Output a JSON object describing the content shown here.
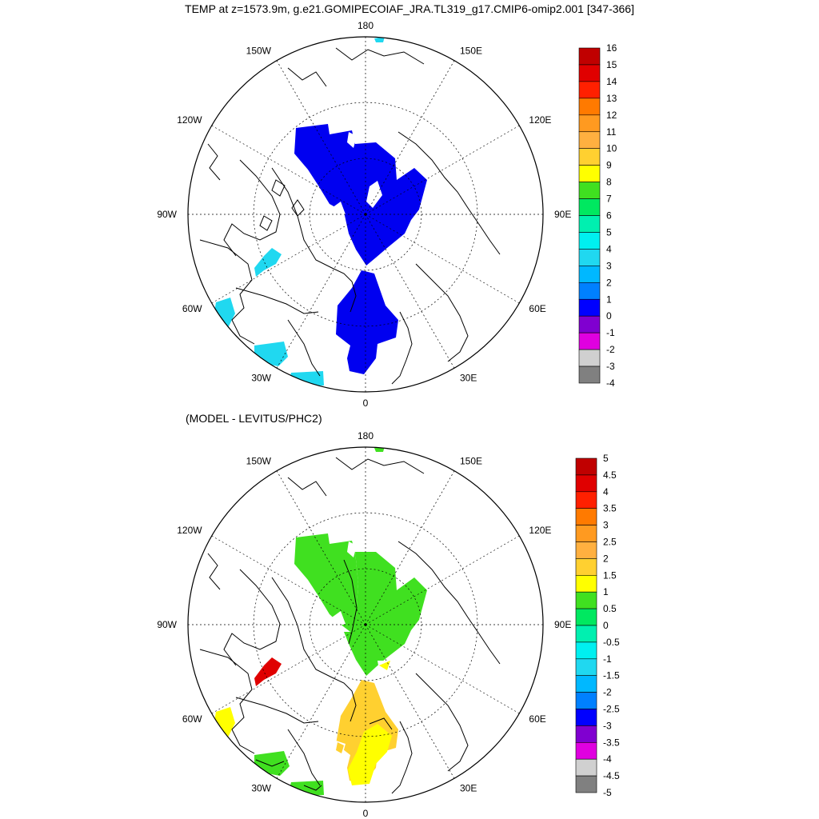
{
  "title": "TEMP at z=1573.9m, g.e21.GOMIPECOIAF_JRA.TL319_g17.CMIP6-omip2.001 [347-366]",
  "panels": [
    {
      "id": "top",
      "subtitle": "",
      "longitude_labels": [
        "180",
        "150E",
        "120E",
        "90E",
        "60E",
        "30E",
        "0",
        "30W",
        "60W",
        "90W",
        "120W",
        "150W"
      ],
      "colorbar": {
        "labels": [
          "16",
          "15",
          "14",
          "13",
          "12",
          "11",
          "10",
          "9",
          "8",
          "7",
          "6",
          "5",
          "4",
          "3",
          "2",
          "1",
          "0",
          "-1",
          "-2",
          "-3",
          "-4"
        ],
        "colors": [
          "#c00000",
          "#e00000",
          "#ff2000",
          "#ff7a00",
          "#ff9a20",
          "#ffb040",
          "#ffd030",
          "#ffff00",
          "#40e020",
          "#00e860",
          "#00f0b0",
          "#00f0f0",
          "#20d8f0",
          "#00b8ff",
          "#0080ff",
          "#0000ff",
          "#8000d0",
          "#e000e0",
          "#d0d0d0",
          "#808080"
        ]
      },
      "fields": [
        {
          "name": "main-arctic-basin",
          "color": "#0000f0"
        },
        {
          "name": "nordic-seas-patch",
          "color": "#0000f0"
        },
        {
          "name": "baffin-patch",
          "color": "#20d8f0"
        },
        {
          "name": "labrador-patch",
          "color": "#20d8f0"
        },
        {
          "name": "irminger-patch",
          "color": "#20d8f0"
        },
        {
          "name": "north-atlantic-patch",
          "color": "#20d8f0"
        },
        {
          "name": "bering-patch",
          "color": "#20d8f0"
        }
      ]
    },
    {
      "id": "bottom",
      "subtitle": "(MODEL - LEVITUS/PHC2)",
      "longitude_labels": [
        "180",
        "150E",
        "120E",
        "90E",
        "60E",
        "30E",
        "0",
        "30W",
        "60W",
        "90W",
        "120W",
        "150W"
      ],
      "colorbar": {
        "labels": [
          "5",
          "4.5",
          "4",
          "3.5",
          "3",
          "2.5",
          "2",
          "1.5",
          "1",
          "0.5",
          "0",
          "-0.5",
          "-1",
          "-1.5",
          "-2",
          "-2.5",
          "-3",
          "-3.5",
          "-4",
          "-4.5",
          "-5"
        ],
        "colors": [
          "#c00000",
          "#e00000",
          "#ff2000",
          "#ff7a00",
          "#ff9a20",
          "#ffb040",
          "#ffd030",
          "#ffff00",
          "#40e020",
          "#00e860",
          "#00f0b0",
          "#00f0f0",
          "#20d8f0",
          "#00b8ff",
          "#0080ff",
          "#0000ff",
          "#8000d0",
          "#e000e0",
          "#d0d0d0",
          "#808080"
        ]
      },
      "fields": [
        {
          "name": "canada-basin-anomaly",
          "color": "#40e020"
        },
        {
          "name": "eurasian-basin-anomaly",
          "color": "#40e020"
        },
        {
          "name": "nordic-seas-anomaly",
          "color": "#ffd030"
        },
        {
          "name": "nordic-seas-inner-anomaly",
          "color": "#ffff00"
        },
        {
          "name": "baffin-anomaly",
          "color": "#e00000"
        },
        {
          "name": "labrador-anomaly",
          "color": "#ffff00"
        },
        {
          "name": "irminger-anomaly",
          "color": "#40e020"
        },
        {
          "name": "north-atlantic-anomaly",
          "color": "#40e020"
        },
        {
          "name": "bering-anomaly",
          "color": "#40e020"
        }
      ]
    }
  ]
}
